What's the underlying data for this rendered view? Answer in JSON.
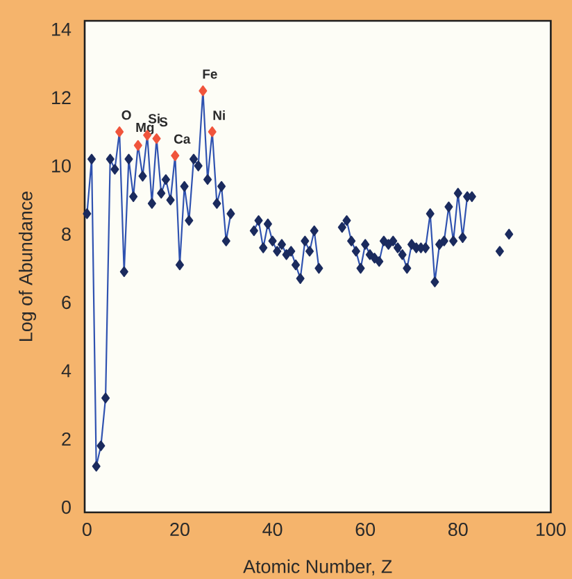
{
  "chart_data": {
    "type": "line",
    "xlabel": "Atomic Number, Z",
    "ylabel": "Log of Abundance",
    "xlim": [
      -0.5,
      100
    ],
    "ylim": [
      -0.15,
      14.25
    ],
    "xticks": [
      0,
      20,
      40,
      60,
      80,
      100
    ],
    "yticks": [
      0,
      2,
      4,
      6,
      8,
      10,
      12,
      14
    ],
    "marker": "diamond",
    "line_style": "solid",
    "x": [
      0,
      1,
      2,
      3,
      4,
      5,
      6,
      7,
      8,
      9,
      10,
      11,
      12,
      13,
      14,
      15,
      16,
      17,
      18,
      19,
      20,
      21,
      22,
      23,
      24,
      25,
      26,
      27,
      28,
      29,
      30,
      31,
      32,
      33,
      34,
      35,
      36,
      37,
      38,
      39,
      40,
      41,
      42,
      43,
      44,
      45,
      46,
      47,
      48,
      49,
      50,
      51,
      52,
      53,
      54,
      55,
      56,
      57,
      58,
      59,
      60,
      61,
      62,
      63,
      64,
      65,
      66,
      67,
      68,
      69,
      70,
      71,
      72,
      73,
      74,
      75,
      76,
      77,
      78,
      79,
      80,
      81,
      82,
      83,
      84,
      85,
      86,
      87,
      88,
      89,
      90,
      91
    ],
    "series": [
      {
        "color": "#2f52b0",
        "values": [
          8.6,
          10.2,
          1.2,
          1.8,
          3.2,
          10.2,
          9.9,
          11.0,
          6.9,
          10.2,
          9.1,
          10.6,
          9.7,
          10.9,
          8.9,
          10.8,
          9.2,
          9.6,
          9.0,
          10.3,
          7.1,
          9.4,
          8.4,
          10.2,
          10.0,
          12.2,
          9.6,
          11.0,
          8.9,
          9.4,
          7.8,
          8.6,
          null,
          null,
          null,
          null,
          8.1,
          8.4,
          7.6,
          8.3,
          7.8,
          7.5,
          7.7,
          7.4,
          7.5,
          7.1,
          6.7,
          7.8,
          7.5,
          8.1,
          7.0,
          null,
          null,
          null,
          null,
          8.2,
          8.4,
          7.8,
          7.5,
          7.0,
          7.7,
          7.4,
          7.3,
          7.2,
          7.8,
          7.7,
          7.8,
          7.6,
          7.4,
          7.0,
          7.7,
          7.6,
          7.6,
          7.6,
          8.6,
          6.6,
          7.7,
          7.8,
          8.8,
          7.8,
          9.2,
          7.9,
          9.1,
          9.1,
          null,
          null,
          null,
          null,
          null,
          7.5,
          null,
          8.0
        ],
        "colors": [
          "#1b2b5e",
          "#1b2b5e",
          "#1b2b5e",
          "#1b2b5e",
          "#1b2b5e",
          "#1b2b5e",
          "#1b2b5e",
          "#f0553c",
          "#1b2b5e",
          "#1b2b5e",
          "#1b2b5e",
          "#f0553c",
          "#1b2b5e",
          "#f0553c",
          "#1b2b5e",
          "#f0553c",
          "#1b2b5e",
          "#1b2b5e",
          "#1b2b5e",
          "#f0553c",
          "#1b2b5e",
          "#1b2b5e",
          "#1b2b5e",
          "#1b2b5e",
          "#1b2b5e",
          "#f0553c",
          "#1b2b5e",
          "#f0553c",
          "#1b2b5e",
          "#1b2b5e",
          "#1b2b5e",
          "#1b2b5e",
          null,
          null,
          null,
          null,
          "#1b2b5e",
          "#1b2b5e",
          "#1b2b5e",
          "#1b2b5e",
          "#1b2b5e",
          "#1b2b5e",
          "#1b2b5e",
          "#1b2b5e",
          "#1b2b5e",
          "#1b2b5e",
          "#1b2b5e",
          "#1b2b5e",
          "#1b2b5e",
          "#1b2b5e",
          "#1b2b5e",
          null,
          null,
          null,
          null,
          "#1b2b5e",
          "#1b2b5e",
          "#1b2b5e",
          "#1b2b5e",
          "#1b2b5e",
          "#1b2b5e",
          "#1b2b5e",
          "#1b2b5e",
          "#1b2b5e",
          "#1b2b5e",
          "#1b2b5e",
          "#1b2b5e",
          "#1b2b5e",
          "#1b2b5e",
          "#1b2b5e",
          "#1b2b5e",
          "#1b2b5e",
          "#1b2b5e",
          "#1b2b5e",
          "#1b2b5e",
          "#1b2b5e",
          "#1b2b5e",
          "#1b2b5e",
          "#1b2b5e",
          "#1b2b5e",
          "#1b2b5e",
          "#1b2b5e",
          "#1b2b5e",
          "#1b2b5e",
          null,
          null,
          null,
          null,
          null,
          "#1b2b5e",
          null,
          "#1b2b5e"
        ]
      }
    ],
    "annotations": [
      {
        "text": "O",
        "x": 7,
        "y": 11.0
      },
      {
        "text": "Mg",
        "x": 11,
        "y": 10.6
      },
      {
        "text": "Si",
        "x": 13,
        "y": 10.9
      },
      {
        "text": "S",
        "x": 15,
        "y": 10.8
      },
      {
        "text": "Ca",
        "x": 19,
        "y": 10.3
      },
      {
        "text": "Fe",
        "x": 25,
        "y": 12.2
      },
      {
        "text": "Ni",
        "x": 27,
        "y": 11.0
      }
    ]
  }
}
